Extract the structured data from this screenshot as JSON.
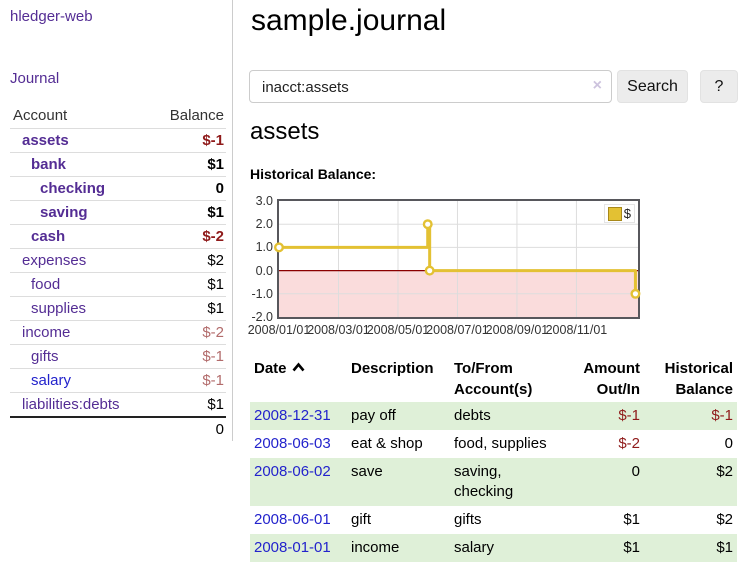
{
  "colors": {
    "purple": "#542d94",
    "linkblue": "#2323cc",
    "neg": "#8f1a1a",
    "negmuted": "#b26b6b",
    "rowgreen": "#dff0d8",
    "chartyellow": "#e3c133",
    "pink": "#fadcdc",
    "zeroline": "#8b0000",
    "grid": "#dddddd",
    "border": "#cccccc",
    "chartborder": "#57575c",
    "btnbg": "#ececec"
  },
  "sidebar": {
    "brand": "hledger-web",
    "nav_journal": "Journal",
    "col_account": "Account",
    "col_balance": "Balance",
    "accounts": [
      {
        "name": "assets",
        "level": 0,
        "bold": true,
        "link": "purple",
        "balance": "$-1",
        "tone": "neg"
      },
      {
        "name": "bank",
        "level": 1,
        "bold": true,
        "link": "purple",
        "balance": "$1",
        "tone": "plain"
      },
      {
        "name": "checking",
        "level": 2,
        "bold": true,
        "link": "purple",
        "balance": "0",
        "tone": "plain"
      },
      {
        "name": "saving",
        "level": 2,
        "bold": true,
        "link": "purple",
        "balance": "$1",
        "tone": "plain"
      },
      {
        "name": "cash",
        "level": 1,
        "bold": true,
        "link": "purple",
        "balance": "$-2",
        "tone": "neg"
      },
      {
        "name": "expenses",
        "level": 0,
        "bold": false,
        "link": "purple",
        "balance": "$2",
        "tone": "plain"
      },
      {
        "name": "food",
        "level": 1,
        "bold": false,
        "link": "purple",
        "balance": "$1",
        "tone": "plain"
      },
      {
        "name": "supplies",
        "level": 1,
        "bold": false,
        "link": "purple",
        "balance": "$1",
        "tone": "plain"
      },
      {
        "name": "income",
        "level": 0,
        "bold": false,
        "link": "purple",
        "balance": "$-2",
        "tone": "negmuted"
      },
      {
        "name": "gifts",
        "level": 1,
        "bold": false,
        "link": "purple",
        "balance": "$-1",
        "tone": "negmuted"
      },
      {
        "name": "salary",
        "level": 1,
        "bold": false,
        "link": "blue",
        "balance": "$-1",
        "tone": "negmuted"
      },
      {
        "name": "liabilities:debts",
        "level": 0,
        "bold": false,
        "link": "purple",
        "balance": "$1",
        "tone": "plain"
      }
    ],
    "total": "0"
  },
  "main": {
    "title": "sample.journal",
    "search": {
      "value": "inacct:assets",
      "clear_glyph": "×",
      "button_label": "Search",
      "help_label": "?"
    },
    "register_heading": "assets",
    "chart_heading": "Historical Balance:"
  },
  "chart_data": {
    "type": "line",
    "step": "after",
    "title": "Historical Balance:",
    "ylim": [
      -2.0,
      3.0
    ],
    "yticks": [
      "3.0",
      "2.0",
      "1.0",
      "0.0",
      "-1.0",
      "-2.0"
    ],
    "xticks": [
      "2008/01/01",
      "2008/03/01",
      "2008/05/01",
      "2008/07/01",
      "2008/09/01",
      "2008/11/01"
    ],
    "legend": {
      "position": "top-right",
      "label": "$"
    },
    "grid": true,
    "negative_region_shaded": true,
    "series": [
      {
        "name": "$",
        "color": "#e3c133",
        "points": [
          {
            "x": "2008-01-01",
            "y": 1
          },
          {
            "x": "2008-06-01",
            "y": 2
          },
          {
            "x": "2008-06-03",
            "y": 0
          },
          {
            "x": "2008-12-31",
            "y": -1
          }
        ]
      }
    ]
  },
  "register": {
    "headers": [
      "Date",
      "Description",
      "To/From Account(s)",
      "Amount Out/In",
      "Historical Balance"
    ],
    "rows": [
      {
        "date": "2008-12-31",
        "description": "pay off",
        "accounts": "debts",
        "amount": "$-1",
        "amount_neg": true,
        "balance": "$-1",
        "balance_neg": true,
        "shaded": true
      },
      {
        "date": "2008-06-03",
        "description": "eat & shop",
        "accounts": "food, supplies",
        "amount": "$-2",
        "amount_neg": true,
        "balance": "0",
        "balance_neg": false,
        "shaded": false
      },
      {
        "date": "2008-06-02",
        "description": "save",
        "accounts": "saving, checking",
        "amount": "0",
        "amount_neg": false,
        "balance": "$2",
        "balance_neg": false,
        "shaded": true
      },
      {
        "date": "2008-06-01",
        "description": "gift",
        "accounts": "gifts",
        "amount": "$1",
        "amount_neg": false,
        "balance": "$2",
        "balance_neg": false,
        "shaded": false
      },
      {
        "date": "2008-01-01",
        "description": "income",
        "accounts": "salary",
        "amount": "$1",
        "amount_neg": false,
        "balance": "$1",
        "balance_neg": false,
        "shaded": true
      }
    ]
  }
}
